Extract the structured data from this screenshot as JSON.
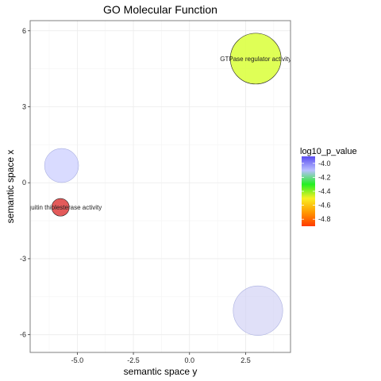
{
  "chart_data": {
    "type": "scatter",
    "title": "GO Molecular Function",
    "xlabel": "semantic space y",
    "ylabel": "semantic space x",
    "xlim": [
      -7.1,
      4.5
    ],
    "ylim": [
      -6.7,
      6.4
    ],
    "x_ticks": [
      -5.0,
      -2.5,
      0.0,
      2.5
    ],
    "x_tick_labels": [
      "-5.0",
      "-2.5",
      "0.0",
      "2.5"
    ],
    "y_ticks": [
      -6,
      -3,
      0,
      3,
      6
    ],
    "y_tick_labels": [
      "-6",
      "-3",
      "0",
      "3",
      "6"
    ],
    "grid": true,
    "points": [
      {
        "x": 2.95,
        "y": 4.9,
        "size": 1.0,
        "log10_p_value": -4.4,
        "color": "#dcff44",
        "label": "GTPase regulator activity"
      },
      {
        "x": -5.7,
        "y": 0.68,
        "size": 0.45,
        "log10_p_value": -3.95,
        "color": "#c4c8ff",
        "label": ""
      },
      {
        "x": -5.75,
        "y": -0.97,
        "size": 0.12,
        "log10_p_value": -4.85,
        "color": "#e04848",
        "label": "ubiquitin thiolesterase activity"
      },
      {
        "x": 3.05,
        "y": -5.05,
        "size": 0.95,
        "log10_p_value": -3.92,
        "color": "#d0d0f4",
        "label": ""
      }
    ],
    "legend": {
      "title": "log10_p_value",
      "placement": "right",
      "labels": [
        "-4.0",
        "-4.2",
        "-4.4",
        "-4.6",
        "-4.8"
      ],
      "values": [
        -4.0,
        -4.2,
        -4.4,
        -4.6,
        -4.8
      ],
      "range": [
        -3.9,
        -4.9
      ],
      "gradient_colors": [
        "#5a4cf0",
        "#b9c0ff",
        "#22f022",
        "#f8f022",
        "#ff9a00",
        "#ff3a00"
      ]
    }
  }
}
